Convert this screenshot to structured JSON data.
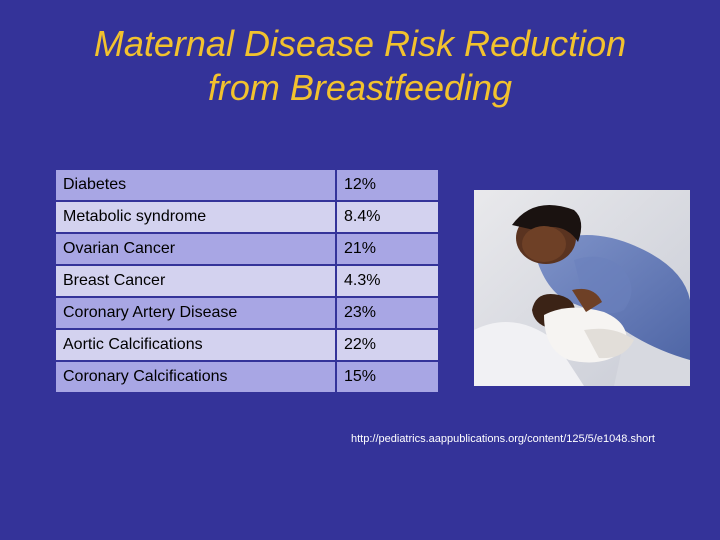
{
  "slide": {
    "title_line1": "Maternal Disease Risk Reduction",
    "title_line2": "from Breastfeeding",
    "source": "http://pediatrics.aappublications.org/content/125/5/e1048.short"
  },
  "table": {
    "rows": [
      {
        "condition": "Diabetes",
        "reduction": "12%"
      },
      {
        "condition": "Metabolic syndrome",
        "reduction": "8.4%"
      },
      {
        "condition": "Ovarian Cancer",
        "reduction": "21%"
      },
      {
        "condition": "Breast Cancer",
        "reduction": "4.3%"
      },
      {
        "condition": "Coronary Artery Disease",
        "reduction": "23%"
      },
      {
        "condition": "Aortic Calcifications",
        "reduction": "22%"
      },
      {
        "condition": "Coronary Calcifications",
        "reduction": "15%"
      }
    ]
  },
  "colors": {
    "background": "#343399",
    "title": "#f2c22e",
    "row_dark": "#a8a6e4",
    "row_light": "#d3d2ef"
  }
}
